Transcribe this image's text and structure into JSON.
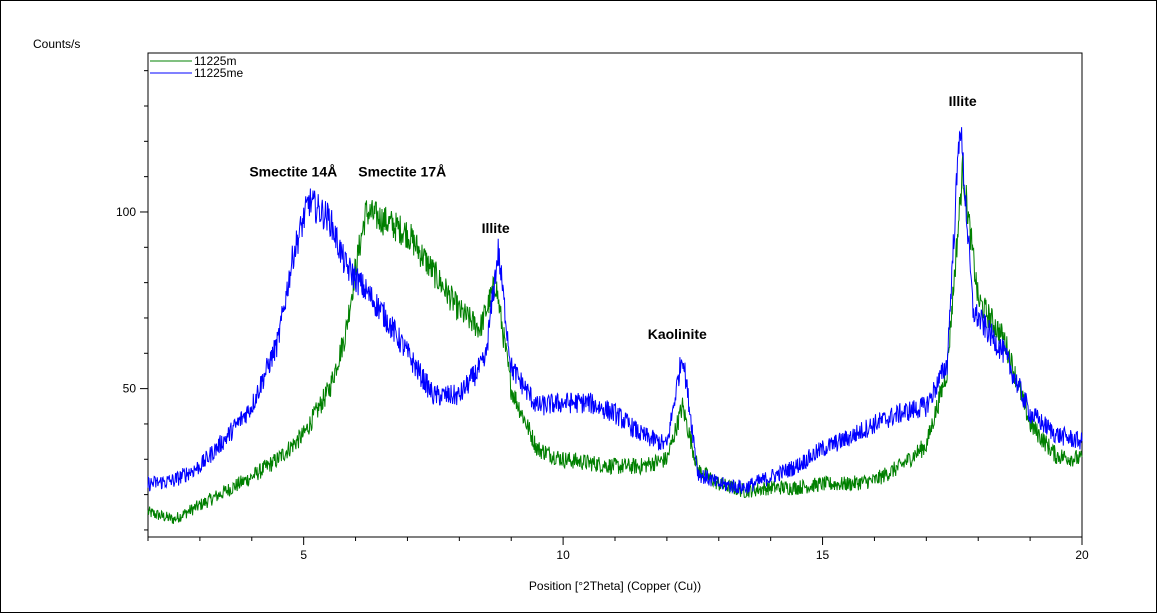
{
  "chart_data": {
    "type": "line",
    "title": "",
    "ylabel": "Counts/s",
    "xlabel": "Position [°2Theta] (Copper (Cu))",
    "xlim": [
      2,
      20
    ],
    "ylim": [
      8,
      145
    ],
    "x_ticks": [
      5,
      10,
      15,
      20
    ],
    "y_ticks": [
      50,
      100
    ],
    "grid": false,
    "legend_position": "top-left",
    "series": [
      {
        "name": "11225m",
        "color": "#008000",
        "points": [
          [
            2.0,
            15
          ],
          [
            2.5,
            13
          ],
          [
            3.0,
            17
          ],
          [
            3.5,
            21
          ],
          [
            4.0,
            25
          ],
          [
            4.5,
            30
          ],
          [
            5.0,
            37
          ],
          [
            5.5,
            50
          ],
          [
            5.8,
            65
          ],
          [
            6.0,
            84
          ],
          [
            6.2,
            100
          ],
          [
            6.5,
            98
          ],
          [
            7.0,
            94
          ],
          [
            7.5,
            83
          ],
          [
            8.0,
            72
          ],
          [
            8.4,
            67
          ],
          [
            8.7,
            80
          ],
          [
            9.0,
            50
          ],
          [
            9.5,
            33
          ],
          [
            10.0,
            30
          ],
          [
            10.5,
            29
          ],
          [
            11.0,
            28
          ],
          [
            11.5,
            28
          ],
          [
            12.0,
            30
          ],
          [
            12.3,
            45
          ],
          [
            12.6,
            27
          ],
          [
            13.0,
            23
          ],
          [
            13.5,
            21
          ],
          [
            14.0,
            22
          ],
          [
            14.5,
            22
          ],
          [
            15.0,
            23
          ],
          [
            15.5,
            23
          ],
          [
            16.0,
            24
          ],
          [
            16.5,
            28
          ],
          [
            17.0,
            34
          ],
          [
            17.4,
            55
          ],
          [
            17.7,
            112
          ],
          [
            18.0,
            75
          ],
          [
            18.5,
            64
          ],
          [
            19.0,
            40
          ],
          [
            19.5,
            31
          ],
          [
            20.0,
            30
          ]
        ]
      },
      {
        "name": "11225me",
        "color": "#0000ff",
        "points": [
          [
            2.0,
            23
          ],
          [
            2.5,
            24
          ],
          [
            3.0,
            28
          ],
          [
            3.5,
            36
          ],
          [
            4.0,
            45
          ],
          [
            4.5,
            63
          ],
          [
            4.8,
            88
          ],
          [
            5.1,
            103
          ],
          [
            5.5,
            98
          ],
          [
            5.8,
            85
          ],
          [
            6.5,
            72
          ],
          [
            7.0,
            60
          ],
          [
            7.5,
            48
          ],
          [
            8.0,
            48
          ],
          [
            8.5,
            58
          ],
          [
            8.75,
            89
          ],
          [
            9.0,
            56
          ],
          [
            9.5,
            45
          ],
          [
            10.0,
            46
          ],
          [
            10.5,
            46
          ],
          [
            11.0,
            43
          ],
          [
            11.5,
            37
          ],
          [
            12.0,
            34
          ],
          [
            12.3,
            60
          ],
          [
            12.6,
            26
          ],
          [
            13.0,
            23
          ],
          [
            13.5,
            22
          ],
          [
            14.0,
            25
          ],
          [
            14.5,
            28
          ],
          [
            15.0,
            33
          ],
          [
            15.5,
            36
          ],
          [
            16.0,
            40
          ],
          [
            16.5,
            43
          ],
          [
            17.0,
            45
          ],
          [
            17.4,
            57
          ],
          [
            17.65,
            126
          ],
          [
            17.9,
            72
          ],
          [
            18.5,
            60
          ],
          [
            19.0,
            43
          ],
          [
            19.5,
            37
          ],
          [
            20.0,
            35
          ]
        ]
      }
    ],
    "annotations": [
      {
        "text": "Smectite 14Å",
        "x": 4.8,
        "y": 110
      },
      {
        "text": "Smectite 17Å",
        "x": 6.9,
        "y": 110
      },
      {
        "text": "Illite",
        "x": 8.7,
        "y": 94
      },
      {
        "text": "Kaolinite",
        "x": 12.2,
        "y": 64
      },
      {
        "text": "Illite",
        "x": 17.7,
        "y": 130
      }
    ]
  }
}
